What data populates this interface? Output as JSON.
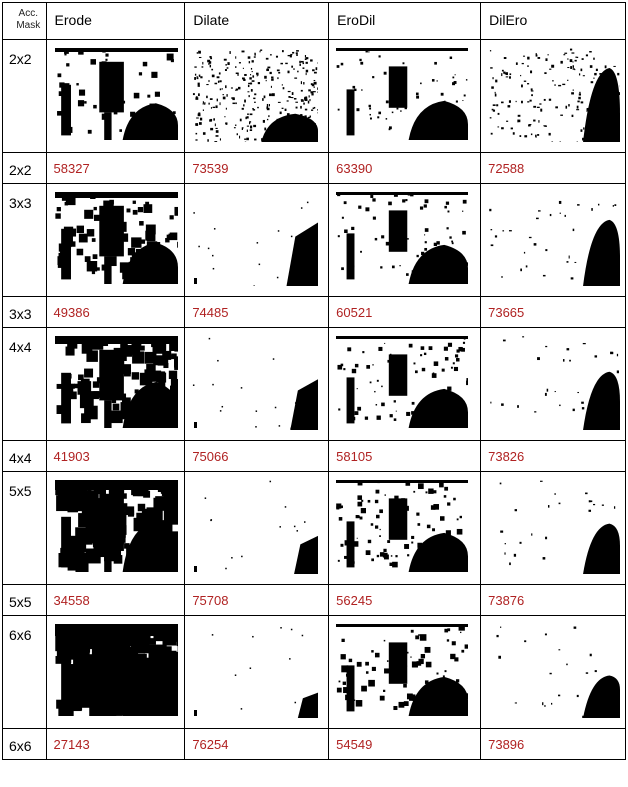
{
  "header": {
    "acc_line1": "Acc.",
    "acc_line2": "Mask",
    "columns": [
      "Erode",
      "Dilate",
      "EroDil",
      "DilEro"
    ]
  },
  "rows": [
    {
      "mask": "2x2",
      "values": [
        "58327",
        "73539",
        "63390",
        "72588"
      ]
    },
    {
      "mask": "3x3",
      "values": [
        "49386",
        "74485",
        "60521",
        "73665"
      ]
    },
    {
      "mask": "4x4",
      "values": [
        "41903",
        "75066",
        "58105",
        "73826"
      ]
    },
    {
      "mask": "5x5",
      "values": [
        "34558",
        "75708",
        "56245",
        "73876"
      ]
    },
    {
      "mask": "6x6",
      "values": [
        "27143",
        "76254",
        "54549",
        "73896"
      ]
    }
  ],
  "colors": {
    "value_text": "#b02222",
    "border": "#000000",
    "mask_foreground": "#000000",
    "mask_background": "#ffffff"
  }
}
